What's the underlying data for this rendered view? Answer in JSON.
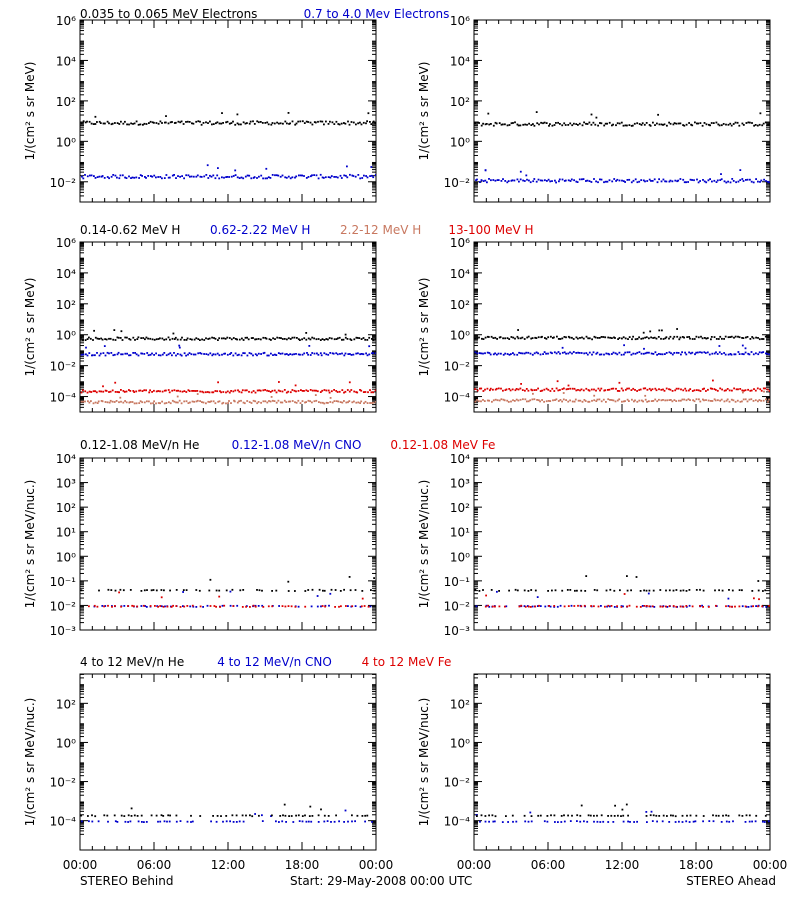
{
  "chart_data": {
    "type": "scatter",
    "x_ticks": [
      "00:00",
      "06:00",
      "12:00",
      "18:00",
      "00:00"
    ],
    "x_range_hours": [
      0,
      24
    ],
    "footer": {
      "left": "STEREO Behind",
      "center": "Start: 29-May-2008 00:00 UTC",
      "right": "STEREO Ahead"
    },
    "rows": [
      {
        "name": "electrons",
        "ylabel": "1/(cm² s sr MeV)",
        "ylog": [
          -3,
          6
        ],
        "ticks": [
          {
            "e": 6,
            "label": "10⁶"
          },
          {
            "e": 4,
            "label": "10⁴"
          },
          {
            "e": 2,
            "label": "10²"
          },
          {
            "e": 0,
            "label": "10⁰"
          },
          {
            "e": -2,
            "label": "10⁻²"
          }
        ],
        "legend": [
          {
            "text": "0.035 to 0.065 MeV Electrons",
            "color": "#000000"
          },
          {
            "text": "0.7 to 4.0 Mev Electrons",
            "color": "#0000cc"
          }
        ],
        "series": [
          {
            "name": "0.035 to 0.065 MeV Electrons",
            "color": "#000000",
            "behind_log10": 0.95,
            "ahead_log10": 0.9
          },
          {
            "name": "0.7 to 4.0 Mev Electrons",
            "color": "#0000cc",
            "behind_log10": -1.7,
            "ahead_log10": -1.9
          }
        ]
      },
      {
        "name": "protons",
        "ylabel": "1/(cm² s sr MeV)",
        "ylog": [
          -5,
          6
        ],
        "ticks": [
          {
            "e": 6,
            "label": "10⁶"
          },
          {
            "e": 4,
            "label": "10⁴"
          },
          {
            "e": 2,
            "label": "10²"
          },
          {
            "e": 0,
            "label": "10⁰"
          },
          {
            "e": -2,
            "label": "10⁻²"
          },
          {
            "e": -4,
            "label": "10⁻⁴"
          }
        ],
        "legend": [
          {
            "text": "0.14-0.62 MeV H",
            "color": "#000000"
          },
          {
            "text": "0.62-2.22 MeV H",
            "color": "#0000cc"
          },
          {
            "text": "2.2-12 MeV H",
            "color": "#c87860"
          },
          {
            "text": "13-100 MeV H",
            "color": "#dd0000"
          }
        ],
        "series": [
          {
            "name": "0.14-0.62 MeV H",
            "color": "#000000",
            "behind_log10": -0.2,
            "ahead_log10": -0.15
          },
          {
            "name": "0.62-2.22 MeV H",
            "color": "#0000cc",
            "behind_log10": -1.2,
            "ahead_log10": -1.15
          },
          {
            "name": "13-100 MeV H",
            "color": "#dd0000",
            "behind_log10": -3.6,
            "ahead_log10": -3.5
          },
          {
            "name": "2.2-12 MeV H",
            "color": "#c87860",
            "behind_log10": -4.3,
            "ahead_log10": -4.2
          }
        ]
      },
      {
        "name": "heavy-ions-low",
        "ylabel": "1/(cm² s sr MeV/nuc.)",
        "ylog": [
          -3,
          4
        ],
        "ticks": [
          {
            "e": 4,
            "label": "10⁴"
          },
          {
            "e": 3,
            "label": "10³"
          },
          {
            "e": 2,
            "label": "10²"
          },
          {
            "e": 1,
            "label": "10¹"
          },
          {
            "e": 0,
            "label": "10⁰"
          },
          {
            "e": -1,
            "label": "10⁻¹"
          },
          {
            "e": -2,
            "label": "10⁻²"
          },
          {
            "e": -3,
            "label": "10⁻³"
          }
        ],
        "legend": [
          {
            "text": "0.12-1.08 MeV/n He",
            "color": "#000000"
          },
          {
            "text": "0.12-1.08 MeV/n CNO",
            "color": "#0000cc"
          },
          {
            "text": "0.12-1.08 MeV Fe",
            "color": "#dd0000"
          }
        ],
        "series": [
          {
            "name": "0.12-1.08 MeV/n He",
            "color": "#000000",
            "behind_log10": -1.35,
            "ahead_log10": -1.35
          },
          {
            "name": "0.12-1.08 MeV/n CNO",
            "color": "#0000cc",
            "behind_log10": -2.0,
            "ahead_log10": -2.0
          },
          {
            "name": "0.12-1.08 MeV Fe",
            "color": "#dd0000",
            "behind_log10": -2.0,
            "ahead_log10": -2.0
          }
        ]
      },
      {
        "name": "heavy-ions-high",
        "ylabel": "1/(cm² s sr MeV/nuc.)",
        "ylog": [
          -5.5,
          3.5
        ],
        "ticks": [
          {
            "e": 2,
            "label": "10²"
          },
          {
            "e": 0,
            "label": "10⁰"
          },
          {
            "e": -2,
            "label": "10⁻²"
          },
          {
            "e": -4,
            "label": "10⁻⁴"
          }
        ],
        "legend": [
          {
            "text": "4 to 12 MeV/n He",
            "color": "#000000"
          },
          {
            "text": "4 to 12 MeV/n CNO",
            "color": "#0000cc"
          },
          {
            "text": "4 to 12 MeV Fe",
            "color": "#dd0000"
          }
        ],
        "series": [
          {
            "name": "4 to 12 MeV/n CNO",
            "color": "#0000cc",
            "behind_log10": -4.0,
            "ahead_log10": -4.0
          },
          {
            "name": "4 to 12 MeV/n He",
            "color": "#000000",
            "behind_log10": -3.7,
            "ahead_log10": -3.7
          }
        ]
      }
    ]
  }
}
